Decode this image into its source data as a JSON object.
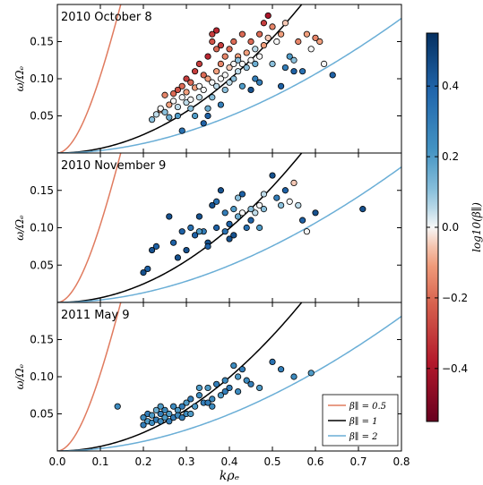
{
  "chart_data": {
    "type": "scatter",
    "xlabel": "kρₑ",
    "ylabel": "ω/Ωₑ",
    "xlim": [
      0.0,
      0.8
    ],
    "ylim": [
      0.0,
      0.2
    ],
    "x_ticks": [
      "0.0",
      "0.1",
      "0.2",
      "0.3",
      "0.4",
      "0.5",
      "0.6",
      "0.7",
      "0.8"
    ],
    "y_ticks": [
      "0.05",
      "0.10",
      "0.15"
    ],
    "colorbar": {
      "label": "log10(β∥)",
      "range": [
        -0.55,
        0.55
      ],
      "ticks": [
        "0.4",
        "0.2",
        "0.0",
        "−0.2",
        "−0.4"
      ],
      "tick_values": [
        0.4,
        0.2,
        0.0,
        -0.2,
        -0.4
      ]
    },
    "curves": [
      {
        "name": "β∥ = 0.5",
        "color": "#e07b5f",
        "beta": 0.5
      },
      {
        "name": "β∥ = 1",
        "color": "#000000",
        "beta": 1.0
      },
      {
        "name": "β∥ = 2",
        "color": "#6aaed6",
        "beta": 2.0
      }
    ],
    "legend_placement": "lower-right of bottom panel",
    "panels": [
      {
        "title": "2010 October 8",
        "points": [
          [
            0.22,
            0.045,
            0.1
          ],
          [
            0.23,
            0.052,
            0.05
          ],
          [
            0.24,
            0.058,
            -0.1
          ],
          [
            0.24,
            0.06,
            0.0
          ],
          [
            0.25,
            0.055,
            0.1
          ],
          [
            0.25,
            0.078,
            -0.15
          ],
          [
            0.26,
            0.065,
            -0.1
          ],
          [
            0.26,
            0.048,
            0.15
          ],
          [
            0.27,
            0.08,
            -0.2
          ],
          [
            0.27,
            0.07,
            0.0
          ],
          [
            0.28,
            0.085,
            -0.25
          ],
          [
            0.28,
            0.062,
            0.05
          ],
          [
            0.29,
            0.09,
            -0.2
          ],
          [
            0.29,
            0.075,
            0.0
          ],
          [
            0.29,
            0.03,
            0.35
          ],
          [
            0.3,
            0.1,
            -0.3
          ],
          [
            0.3,
            0.068,
            0.05
          ],
          [
            0.3,
            0.082,
            -0.1
          ],
          [
            0.31,
            0.095,
            -0.2
          ],
          [
            0.31,
            0.06,
            0.1
          ],
          [
            0.31,
            0.072,
            0.0
          ],
          [
            0.32,
            0.11,
            -0.3
          ],
          [
            0.32,
            0.088,
            -0.1
          ],
          [
            0.32,
            0.05,
            0.2
          ],
          [
            0.33,
            0.09,
            0.0
          ],
          [
            0.33,
            0.075,
            0.05
          ],
          [
            0.33,
            0.12,
            -0.3
          ],
          [
            0.34,
            0.105,
            -0.2
          ],
          [
            0.34,
            0.085,
            0.0
          ],
          [
            0.34,
            0.04,
            0.4
          ],
          [
            0.35,
            0.1,
            -0.1
          ],
          [
            0.35,
            0.13,
            -0.35
          ],
          [
            0.35,
            0.06,
            0.15
          ],
          [
            0.36,
            0.16,
            -0.3
          ],
          [
            0.36,
            0.15,
            -0.25
          ],
          [
            0.36,
            0.095,
            0.0
          ],
          [
            0.36,
            0.075,
            0.1
          ],
          [
            0.37,
            0.165,
            -0.35
          ],
          [
            0.37,
            0.14,
            -0.2
          ],
          [
            0.37,
            0.11,
            -0.1
          ],
          [
            0.37,
            0.09,
            0.05
          ],
          [
            0.38,
            0.12,
            -0.15
          ],
          [
            0.38,
            0.1,
            0.0
          ],
          [
            0.38,
            0.145,
            -0.3
          ],
          [
            0.38,
            0.065,
            0.3
          ],
          [
            0.39,
            0.13,
            -0.15
          ],
          [
            0.39,
            0.105,
            0.0
          ],
          [
            0.39,
            0.085,
            0.1
          ],
          [
            0.4,
            0.115,
            -0.05
          ],
          [
            0.4,
            0.14,
            -0.2
          ],
          [
            0.4,
            0.095,
            0.05
          ],
          [
            0.41,
            0.12,
            0.0
          ],
          [
            0.41,
            0.15,
            -0.2
          ],
          [
            0.41,
            0.1,
            0.1
          ],
          [
            0.42,
            0.13,
            -0.1
          ],
          [
            0.42,
            0.125,
            0.1
          ],
          [
            0.42,
            0.11,
            0.05
          ],
          [
            0.43,
            0.16,
            -0.2
          ],
          [
            0.43,
            0.12,
            0.0
          ],
          [
            0.43,
            0.09,
            0.2
          ],
          [
            0.44,
            0.135,
            -0.1
          ],
          [
            0.44,
            0.115,
            0.1
          ],
          [
            0.45,
            0.15,
            -0.2
          ],
          [
            0.45,
            0.125,
            0.0
          ],
          [
            0.46,
            0.14,
            0.05
          ],
          [
            0.46,
            0.12,
            0.15
          ],
          [
            0.46,
            0.1,
            0.3
          ],
          [
            0.47,
            0.16,
            -0.2
          ],
          [
            0.47,
            0.13,
            0.0
          ],
          [
            0.48,
            0.175,
            -0.3
          ],
          [
            0.48,
            0.145,
            -0.1
          ],
          [
            0.49,
            0.185,
            -0.4
          ],
          [
            0.49,
            0.155,
            -0.05
          ],
          [
            0.5,
            0.17,
            -0.15
          ],
          [
            0.5,
            0.12,
            0.1
          ],
          [
            0.51,
            0.15,
            0.0
          ],
          [
            0.52,
            0.16,
            -0.1
          ],
          [
            0.53,
            0.175,
            -0.05
          ],
          [
            0.53,
            0.115,
            0.3
          ],
          [
            0.54,
            0.13,
            0.2
          ],
          [
            0.55,
            0.125,
            0.1
          ],
          [
            0.56,
            0.15,
            -0.15
          ],
          [
            0.57,
            0.11,
            0.35
          ],
          [
            0.58,
            0.16,
            -0.1
          ],
          [
            0.59,
            0.14,
            0.0
          ],
          [
            0.6,
            0.155,
            -0.15
          ],
          [
            0.61,
            0.15,
            -0.1
          ],
          [
            0.62,
            0.12,
            0.0
          ],
          [
            0.64,
            0.105,
            0.4
          ],
          [
            0.52,
            0.09,
            0.4
          ],
          [
            0.55,
            0.11,
            0.4
          ],
          [
            0.45,
            0.085,
            0.45
          ],
          [
            0.47,
            0.095,
            0.3
          ],
          [
            0.35,
            0.05,
            0.4
          ],
          [
            0.28,
            0.05,
            0.2
          ]
        ]
      },
      {
        "title": "2010 November 9",
        "points": [
          [
            0.2,
            0.04,
            0.45
          ],
          [
            0.21,
            0.045,
            0.4
          ],
          [
            0.22,
            0.07,
            0.45
          ],
          [
            0.23,
            0.075,
            0.4
          ],
          [
            0.26,
            0.115,
            0.45
          ],
          [
            0.27,
            0.08,
            0.4
          ],
          [
            0.28,
            0.06,
            0.45
          ],
          [
            0.29,
            0.095,
            0.4
          ],
          [
            0.3,
            0.07,
            0.45
          ],
          [
            0.31,
            0.1,
            0.35
          ],
          [
            0.32,
            0.09,
            0.4
          ],
          [
            0.33,
            0.115,
            0.45
          ],
          [
            0.34,
            0.095,
            0.3
          ],
          [
            0.35,
            0.08,
            0.45
          ],
          [
            0.36,
            0.13,
            0.45
          ],
          [
            0.37,
            0.135,
            0.35
          ],
          [
            0.37,
            0.1,
            0.4
          ],
          [
            0.38,
            0.15,
            0.45
          ],
          [
            0.39,
            0.12,
            0.3
          ],
          [
            0.4,
            0.105,
            0.4
          ],
          [
            0.4,
            0.085,
            0.45
          ],
          [
            0.41,
            0.125,
            0.2
          ],
          [
            0.42,
            0.14,
            0.1
          ],
          [
            0.42,
            0.115,
            0.15
          ],
          [
            0.43,
            0.12,
            0.0
          ],
          [
            0.43,
            0.145,
            0.4
          ],
          [
            0.44,
            0.1,
            0.35
          ],
          [
            0.45,
            0.11,
            0.4
          ],
          [
            0.45,
            0.125,
            0.1
          ],
          [
            0.46,
            0.12,
            0.05
          ],
          [
            0.47,
            0.13,
            0.0
          ],
          [
            0.47,
            0.1,
            0.2
          ],
          [
            0.48,
            0.145,
            0.05
          ],
          [
            0.48,
            0.125,
            0.1
          ],
          [
            0.5,
            0.17,
            0.45
          ],
          [
            0.51,
            0.14,
            0.3
          ],
          [
            0.52,
            0.13,
            0.1
          ],
          [
            0.53,
            0.15,
            0.4
          ],
          [
            0.54,
            0.135,
            0.0
          ],
          [
            0.55,
            0.16,
            -0.05
          ],
          [
            0.56,
            0.13,
            0.05
          ],
          [
            0.57,
            0.11,
            0.4
          ],
          [
            0.58,
            0.095,
            0.0
          ],
          [
            0.6,
            0.12,
            0.45
          ],
          [
            0.71,
            0.125,
            0.45
          ],
          [
            0.39,
            0.095,
            0.35
          ],
          [
            0.41,
            0.09,
            0.45
          ],
          [
            0.35,
            0.075,
            0.4
          ],
          [
            0.33,
            0.095,
            0.2
          ]
        ]
      },
      {
        "title": "2011 May 9",
        "points": [
          [
            0.14,
            0.06,
            0.25
          ],
          [
            0.2,
            0.035,
            0.3
          ],
          [
            0.2,
            0.045,
            0.25
          ],
          [
            0.21,
            0.04,
            0.2
          ],
          [
            0.21,
            0.05,
            0.3
          ],
          [
            0.22,
            0.038,
            0.25
          ],
          [
            0.22,
            0.048,
            0.2
          ],
          [
            0.23,
            0.042,
            0.3
          ],
          [
            0.23,
            0.055,
            0.15
          ],
          [
            0.24,
            0.04,
            0.25
          ],
          [
            0.24,
            0.05,
            0.3
          ],
          [
            0.25,
            0.045,
            0.2
          ],
          [
            0.25,
            0.055,
            0.25
          ],
          [
            0.26,
            0.04,
            0.3
          ],
          [
            0.26,
            0.05,
            0.2
          ],
          [
            0.27,
            0.06,
            0.25
          ],
          [
            0.27,
            0.045,
            0.3
          ],
          [
            0.28,
            0.055,
            0.2
          ],
          [
            0.28,
            0.048,
            0.25
          ],
          [
            0.29,
            0.06,
            0.3
          ],
          [
            0.3,
            0.065,
            0.2
          ],
          [
            0.3,
            0.05,
            0.25
          ],
          [
            0.31,
            0.07,
            0.3
          ],
          [
            0.32,
            0.06,
            0.2
          ],
          [
            0.33,
            0.075,
            0.25
          ],
          [
            0.34,
            0.065,
            0.3
          ],
          [
            0.35,
            0.085,
            0.2
          ],
          [
            0.36,
            0.07,
            0.25
          ],
          [
            0.37,
            0.09,
            0.3
          ],
          [
            0.38,
            0.075,
            0.2
          ],
          [
            0.39,
            0.095,
            0.25
          ],
          [
            0.4,
            0.085,
            0.3
          ],
          [
            0.41,
            0.115,
            0.25
          ],
          [
            0.42,
            0.1,
            0.2
          ],
          [
            0.43,
            0.11,
            0.3
          ],
          [
            0.44,
            0.095,
            0.25
          ],
          [
            0.45,
            0.09,
            0.3
          ],
          [
            0.47,
            0.085,
            0.2
          ],
          [
            0.5,
            0.12,
            0.35
          ],
          [
            0.52,
            0.11,
            0.3
          ],
          [
            0.55,
            0.1,
            0.25
          ],
          [
            0.59,
            0.105,
            0.2
          ],
          [
            0.33,
            0.085,
            0.2
          ],
          [
            0.36,
            0.06,
            0.25
          ],
          [
            0.39,
            0.08,
            0.3
          ],
          [
            0.24,
            0.06,
            0.2
          ],
          [
            0.29,
            0.045,
            0.3
          ],
          [
            0.31,
            0.05,
            0.2
          ],
          [
            0.35,
            0.065,
            0.3
          ],
          [
            0.42,
            0.08,
            0.25
          ]
        ]
      }
    ]
  }
}
